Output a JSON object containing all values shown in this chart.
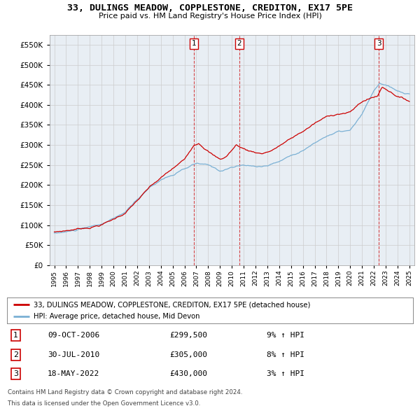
{
  "title1": "33, DULINGS MEADOW, COPPLESTONE, CREDITON, EX17 5PE",
  "title2": "Price paid vs. HM Land Registry's House Price Index (HPI)",
  "legend_label_red": "33, DULINGS MEADOW, COPPLESTONE, CREDITON, EX17 5PE (detached house)",
  "legend_label_blue": "HPI: Average price, detached house, Mid Devon",
  "transactions": [
    {
      "num": 1,
      "date": "09-OCT-2006",
      "price": 299500,
      "pct": "9%",
      "dir": "↑"
    },
    {
      "num": 2,
      "date": "30-JUL-2010",
      "price": 305000,
      "pct": "8%",
      "dir": "↑"
    },
    {
      "num": 3,
      "date": "18-MAY-2022",
      "price": 430000,
      "pct": "3%",
      "dir": "↑"
    }
  ],
  "footer1": "Contains HM Land Registry data © Crown copyright and database right 2024.",
  "footer2": "This data is licensed under the Open Government Licence v3.0.",
  "ylim": [
    0,
    575000
  ],
  "yticks": [
    0,
    50000,
    100000,
    150000,
    200000,
    250000,
    300000,
    350000,
    400000,
    450000,
    500000,
    550000
  ],
  "background_color": "#ffffff",
  "grid_color": "#cccccc",
  "red_color": "#cc0000",
  "blue_color": "#7ab0d4",
  "chart_bg": "#e8eef4"
}
